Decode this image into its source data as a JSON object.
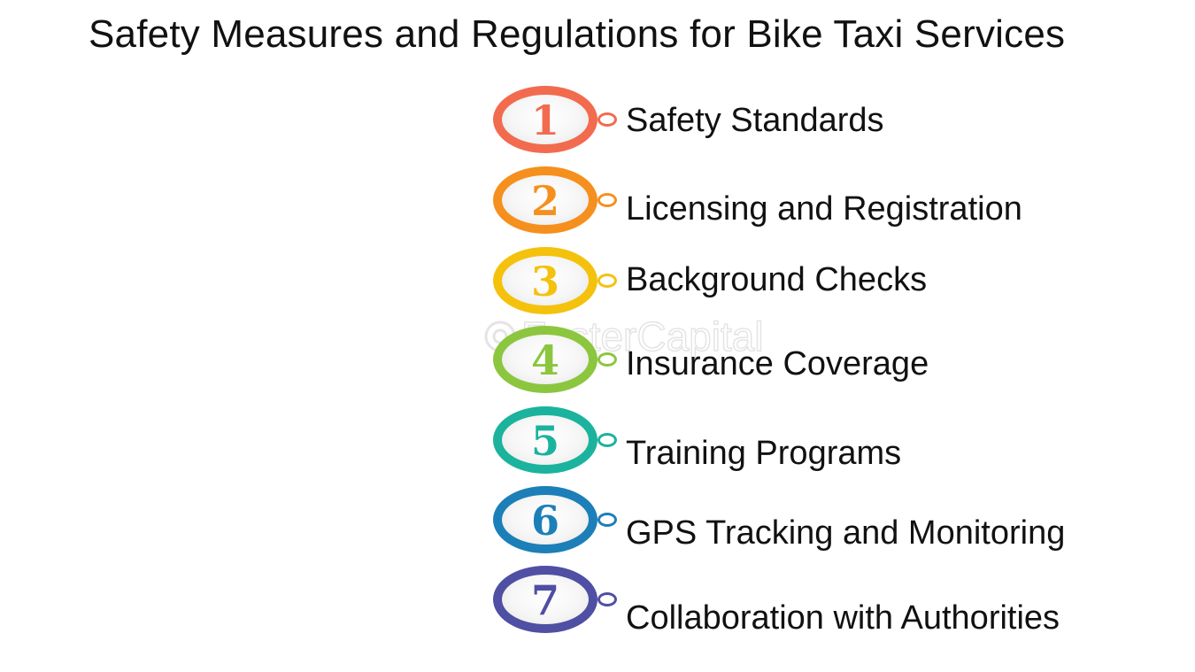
{
  "title": "Safety Measures and Regulations for Bike Taxi Services",
  "watermark": "FasterCapital",
  "steps": [
    {
      "number": "1",
      "label": "Safety Standards",
      "color": "#F26B4E"
    },
    {
      "number": "2",
      "label": "Licensing and Registration",
      "color": "#F5901E"
    },
    {
      "number": "3",
      "label": "Background Checks",
      "color": "#F4C20D"
    },
    {
      "number": "4",
      "label": "Insurance Coverage",
      "color": "#8CC63F"
    },
    {
      "number": "5",
      "label": "Training Programs",
      "color": "#1BB39D"
    },
    {
      "number": "6",
      "label": "GPS Tracking and Monitoring",
      "color": "#1C7FB8"
    },
    {
      "number": "7",
      "label": "Collaboration with Authorities",
      "color": "#4F4FA3"
    }
  ]
}
